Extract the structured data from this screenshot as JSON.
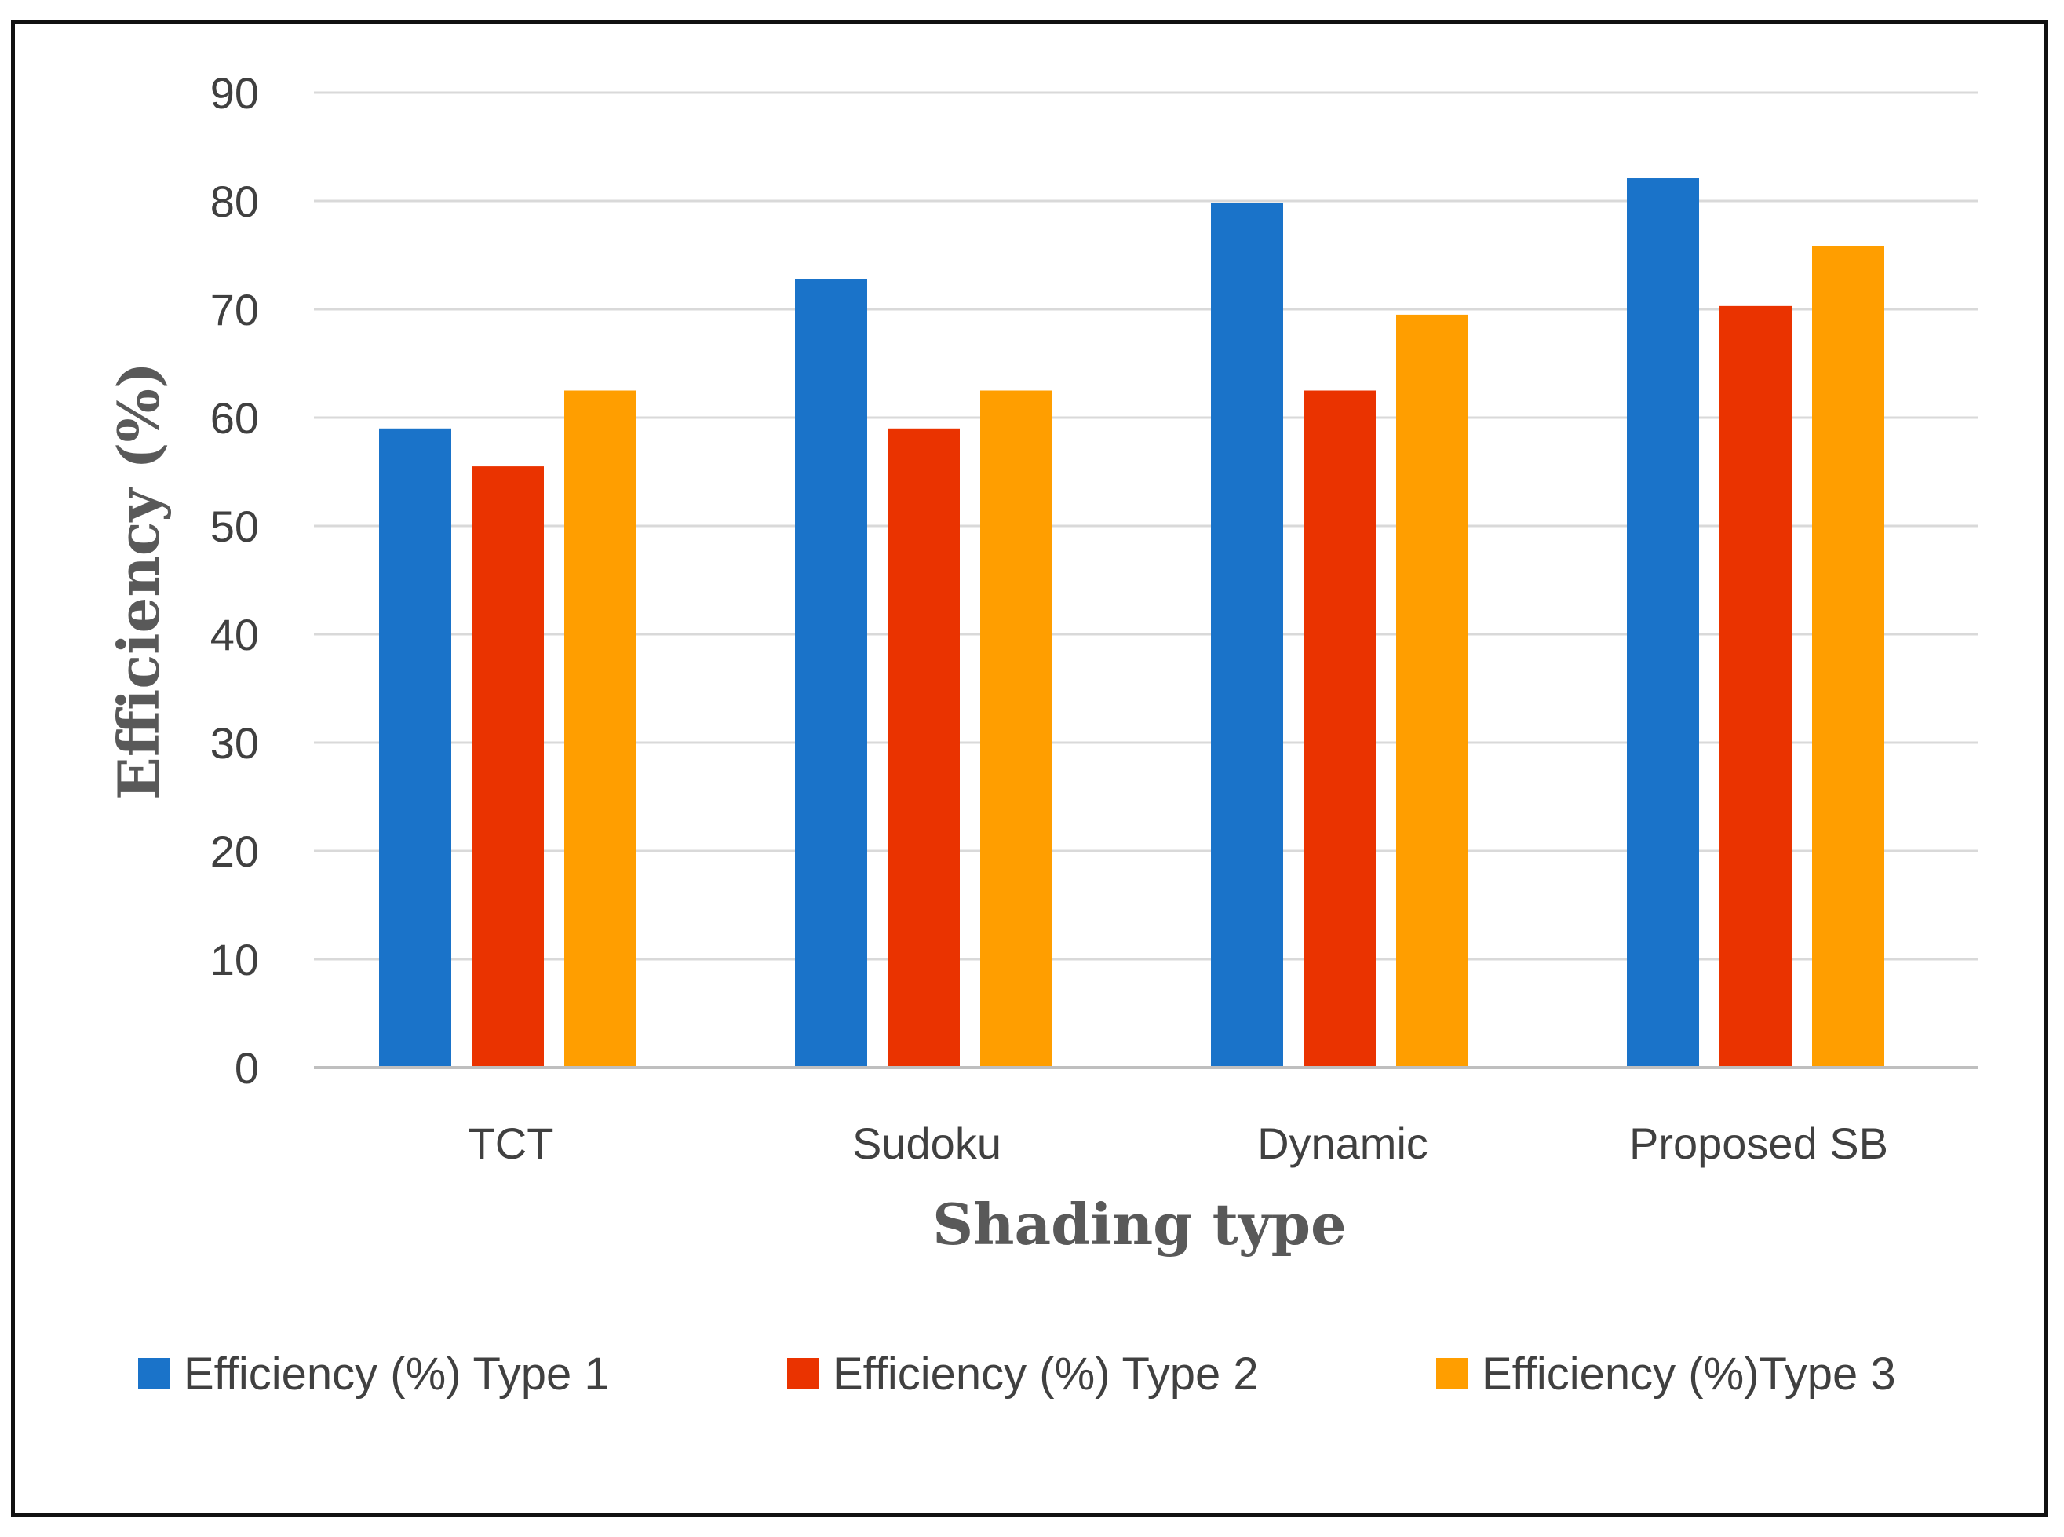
{
  "chart_data": {
    "type": "bar",
    "title": "",
    "xlabel": "Shading type",
    "ylabel": "Efficiency (%)",
    "ylim": [
      0,
      90
    ],
    "yticks": [
      0,
      10,
      20,
      30,
      40,
      50,
      60,
      70,
      80,
      90
    ],
    "grid": true,
    "legend_position": "bottom",
    "categories": [
      "TCT",
      "Sudoku",
      "Dynamic",
      "Proposed SB"
    ],
    "series": [
      {
        "name": "Efficiency (%) Type 1",
        "color": "#1a73c9",
        "values": [
          59,
          72.8,
          79.8,
          82.1
        ]
      },
      {
        "name": "Efficiency (%) Type 2",
        "color": "#ea3300",
        "values": [
          55.5,
          59,
          62.5,
          70.3
        ]
      },
      {
        "name": "Efficiency (%)Type 3",
        "color": "#ff9e00",
        "values": [
          62.5,
          62.5,
          69.5,
          75.8
        ]
      }
    ]
  }
}
